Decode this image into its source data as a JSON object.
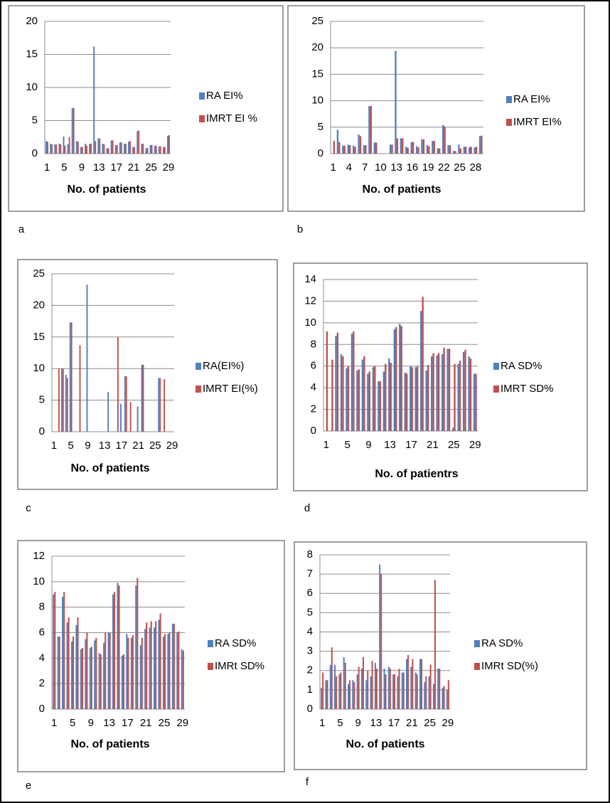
{
  "chart_data": [
    {
      "type": "bar",
      "panel_label": "a",
      "x_label": "No. of patients",
      "categories": [
        "1",
        null,
        null,
        null,
        "5",
        null,
        null,
        null,
        "9",
        null,
        null,
        null,
        "13",
        null,
        null,
        null,
        "17",
        null,
        null,
        null,
        "21",
        null,
        null,
        null,
        "25",
        null,
        null,
        null,
        "29"
      ],
      "series": [
        {
          "name": "RA EI%",
          "color": "#4f81bd",
          "values": [
            1.9,
            1.5,
            1.4,
            1.5,
            2.6,
            1.4,
            6.9,
            1.9,
            1.0,
            1.5,
            1.5,
            16.2,
            2.3,
            1.5,
            0.8,
            2.0,
            1.3,
            1.7,
            1.5,
            1.8,
            1.0,
            3.4,
            1.5,
            0.8,
            1.3,
            1.2,
            1.1,
            1.0,
            2.7
          ]
        },
        {
          "name": "IMRT EI %",
          "color": "#c0504d",
          "values": [
            1.8,
            1.4,
            1.4,
            1.4,
            1.2,
            2.5,
            6.9,
            1.8,
            1.0,
            1.2,
            1.5,
            1.9,
            2.3,
            1.4,
            0.8,
            2.0,
            1.3,
            1.7,
            1.5,
            1.9,
            1.0,
            3.5,
            1.5,
            0.9,
            1.3,
            1.2,
            1.1,
            1.0,
            2.8
          ]
        }
      ],
      "ylim": [
        0,
        20
      ],
      "yticks": [
        0,
        5,
        10,
        15,
        20
      ],
      "grid": true,
      "legend": "right"
    },
    {
      "type": "bar",
      "panel_label": "b",
      "x_label": "No. of patients",
      "categories": [
        "1",
        null,
        null,
        "4",
        null,
        null,
        "7",
        null,
        null,
        "10",
        null,
        null,
        "13",
        null,
        null,
        "16",
        null,
        null,
        "19",
        null,
        null,
        "22",
        null,
        null,
        "25",
        null,
        null,
        "28",
        null
      ],
      "series": [
        {
          "name": "RA EI%",
          "color": "#4f81bd",
          "values": [
            0,
            4.5,
            1.5,
            1.7,
            1.5,
            3.6,
            1.6,
            9.0,
            2.1,
            0,
            0,
            1.7,
            19.4,
            2.9,
            1.3,
            2.2,
            1.4,
            2.7,
            1.6,
            2.4,
            1.0,
            5.4,
            1.6,
            0.5,
            1.7,
            1.3,
            1.2,
            1.2,
            3.3
          ]
        },
        {
          "name": "IMRT EI%",
          "color": "#c0504d",
          "values": [
            2.4,
            2.2,
            1.5,
            1.6,
            1.3,
            3.3,
            1.6,
            9.0,
            2.1,
            0,
            0,
            1.7,
            2.9,
            2.9,
            1.1,
            2.2,
            1.2,
            2.7,
            1.4,
            2.4,
            1.0,
            5.1,
            1.6,
            0.5,
            1.0,
            1.3,
            1.3,
            1.3,
            3.4
          ]
        }
      ],
      "ylim": [
        0,
        25
      ],
      "yticks": [
        0,
        5,
        10,
        15,
        20,
        25
      ],
      "grid": true,
      "legend": "right"
    },
    {
      "type": "bar",
      "panel_label": "c",
      "x_label": "No. of patients",
      "categories": [
        "1",
        null,
        null,
        null,
        "5",
        null,
        null,
        null,
        "9",
        null,
        null,
        null,
        "13",
        null,
        null,
        null,
        "17",
        null,
        null,
        null,
        "21",
        null,
        null,
        null,
        "25",
        null,
        null,
        null,
        "29"
      ],
      "series": [
        {
          "name": "RA(EI%)",
          "color": "#4f81bd",
          "values": [
            0,
            0,
            10,
            9,
            17.3,
            0,
            0,
            0,
            23.3,
            0,
            0,
            0,
            0,
            6.3,
            0,
            0,
            4.4,
            8.8,
            0,
            0,
            4.0,
            10.6,
            0,
            0,
            0,
            8.5,
            0,
            0,
            0
          ]
        },
        {
          "name": "IMRT EI(%)",
          "color": "#c0504d",
          "values": [
            0,
            10,
            10,
            8.5,
            17.3,
            0,
            13.7,
            0,
            0,
            0,
            0,
            0,
            0,
            0,
            0,
            15,
            0,
            8.8,
            4.7,
            0,
            0,
            10.6,
            0,
            0,
            0,
            8.5,
            8.3,
            0,
            0
          ]
        }
      ],
      "ylim": [
        0,
        25
      ],
      "yticks": [
        0,
        5,
        10,
        15,
        20,
        25
      ],
      "grid": true,
      "legend": "right"
    },
    {
      "type": "bar",
      "panel_label": "d",
      "x_label": "No. of patientrs",
      "categories": [
        "1",
        null,
        null,
        null,
        "5",
        null,
        null,
        null,
        "9",
        null,
        null,
        null,
        "13",
        null,
        null,
        null,
        "17",
        null,
        null,
        null,
        "21",
        null,
        null,
        null,
        "25",
        null,
        null,
        null,
        "29"
      ],
      "series": [
        {
          "name": "RA SD%",
          "color": "#4f81bd",
          "values": [
            0,
            0,
            8.8,
            7.1,
            5.8,
            9.0,
            5.6,
            6.6,
            5.3,
            5.9,
            4.6,
            5.5,
            6.7,
            9.4,
            9.9,
            5.4,
            6.0,
            5.9,
            11.1,
            5.6,
            6.9,
            7.0,
            7.1,
            7.6,
            0.3,
            6.2,
            7.3,
            6.9,
            5.3
          ]
        },
        {
          "name": "IMRT SD%",
          "color": "#c0504d",
          "values": [
            9.2,
            6.6,
            9.1,
            6.9,
            6.0,
            9.2,
            5.7,
            6.9,
            5.5,
            6.0,
            4.6,
            6.2,
            6.3,
            9.6,
            9.7,
            5.3,
            5.9,
            6.0,
            12.4,
            6.1,
            7.2,
            7.2,
            7.7,
            7.6,
            6.2,
            6.5,
            7.5,
            6.7,
            5.3
          ]
        }
      ],
      "ylim": [
        0,
        14
      ],
      "yticks": [
        0,
        2,
        4,
        6,
        8,
        10,
        12,
        14
      ],
      "grid": true,
      "legend": "right"
    },
    {
      "type": "bar",
      "panel_label": "e",
      "x_label": "No. of patients",
      "categories": [
        "1",
        null,
        null,
        null,
        "5",
        null,
        null,
        null,
        "9",
        null,
        null,
        null,
        "13",
        null,
        null,
        null,
        "17",
        null,
        null,
        null,
        "21",
        null,
        null,
        null,
        "25",
        null,
        null,
        null,
        "29"
      ],
      "series": [
        {
          "name": "RA SD%",
          "color": "#4f81bd",
          "values": [
            9.0,
            5.7,
            8.8,
            6.8,
            5.3,
            6.6,
            4.7,
            5.5,
            4.8,
            5.4,
            4.4,
            5.2,
            6.0,
            9.0,
            9.9,
            4.2,
            5.9,
            5.6,
            9.7,
            5.0,
            6.3,
            6.4,
            6.4,
            7.0,
            5.7,
            5.9,
            6.7,
            6.0,
            4.7
          ]
        },
        {
          "name": "IMRt SD%",
          "color": "#c0504d",
          "values": [
            9.2,
            5.7,
            9.2,
            7.2,
            5.7,
            7.2,
            4.8,
            6.0,
            4.9,
            5.6,
            4.3,
            6.0,
            6.0,
            9.2,
            9.7,
            4.3,
            5.6,
            5.8,
            10.3,
            5.6,
            6.8,
            6.9,
            6.9,
            7.5,
            5.9,
            6.0,
            6.7,
            6.1,
            4.6
          ]
        }
      ],
      "ylim": [
        0,
        12
      ],
      "yticks": [
        0,
        2,
        4,
        6,
        8,
        10,
        12
      ],
      "grid": true,
      "legend": "right"
    },
    {
      "type": "bar",
      "panel_label": "f",
      "x_label": "No. of patients",
      "categories": [
        "1",
        null,
        null,
        null,
        "5",
        null,
        null,
        null,
        "9",
        null,
        null,
        null,
        "13",
        null,
        null,
        null,
        "17",
        null,
        null,
        null,
        "21",
        null,
        null,
        null,
        "25",
        null,
        null,
        null,
        "29"
      ],
      "series": [
        {
          "name": "RA SD%",
          "color": "#4f81bd",
          "values": [
            1.1,
            1.5,
            2.3,
            2.3,
            1.8,
            2.7,
            1.3,
            1.5,
            1.8,
            2.1,
            1.5,
            1.7,
            2.4,
            7.5,
            2.1,
            2.2,
            1.8,
            1.7,
            1.9,
            2.6,
            2.2,
            1.9,
            2.6,
            1.4,
            1.7,
            1.3,
            2.1,
            1.1,
            1.0
          ]
        },
        {
          "name": "IMRt SD(%)",
          "color": "#c0504d",
          "values": [
            1.9,
            1.5,
            3.2,
            1.7,
            1.9,
            2.4,
            1.5,
            1.4,
            2.2,
            2.7,
            2.0,
            2.5,
            2.1,
            7.0,
            1.8,
            2.1,
            1.8,
            2.1,
            1.9,
            2.8,
            2.6,
            1.8,
            2.6,
            1.7,
            2.3,
            6.7,
            2.1,
            1.2,
            1.5
          ]
        }
      ],
      "ylim": [
        0,
        8
      ],
      "yticks": [
        0,
        1,
        2,
        3,
        4,
        5,
        6,
        7,
        8
      ],
      "grid": true,
      "legend": "right"
    }
  ]
}
